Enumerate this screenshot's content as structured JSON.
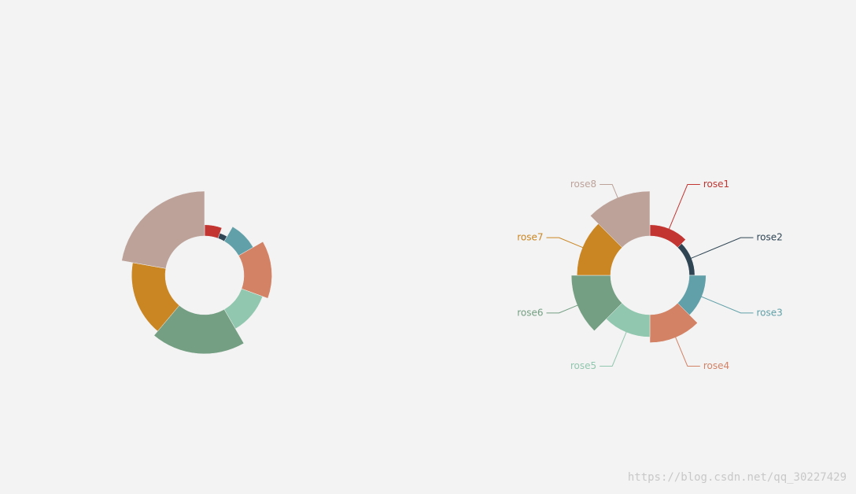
{
  "chart_data": [
    {
      "type": "pie",
      "rose_type": "radius",
      "values": [
        10,
        5,
        15,
        25,
        20,
        35,
        30,
        40
      ],
      "colors": [
        "#c23531",
        "#2f4554",
        "#61a0a8",
        "#d48265",
        "#91c7ae",
        "#749f83",
        "#ca8622",
        "#bda29a"
      ]
    },
    {
      "type": "pie",
      "rose_type": "area",
      "categories": [
        "rose1",
        "rose2",
        "rose3",
        "rose4",
        "rose5",
        "rose6",
        "rose7",
        "rose8"
      ],
      "values": [
        10,
        5,
        15,
        25,
        20,
        35,
        30,
        40
      ],
      "colors": [
        "#c23531",
        "#2f4554",
        "#61a0a8",
        "#d48265",
        "#91c7ae",
        "#749f83",
        "#ca8622",
        "#bda29a"
      ]
    }
  ],
  "watermark": "https://blog.csdn.net/qq_30227429"
}
